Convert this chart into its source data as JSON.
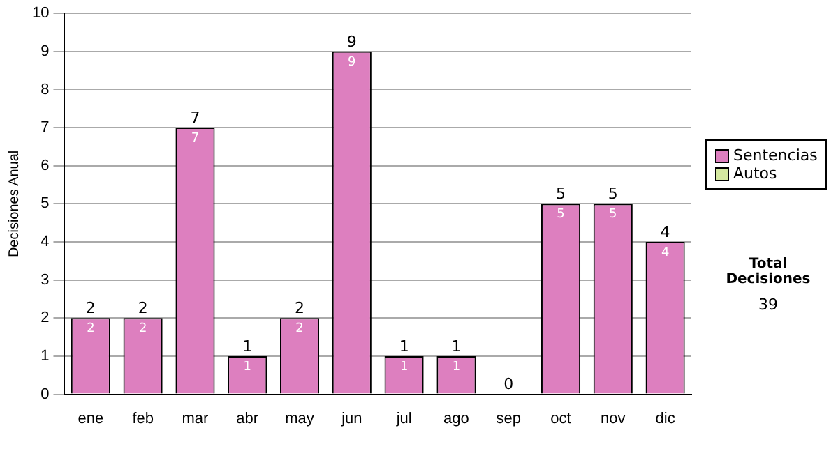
{
  "chart_data": {
    "type": "bar",
    "stacked": true,
    "ylabel": "Decisiones Anual",
    "categories": [
      "ene",
      "feb",
      "mar",
      "abr",
      "may",
      "jun",
      "jul",
      "ago",
      "sep",
      "oct",
      "nov",
      "dic"
    ],
    "series": [
      {
        "name": "Sentencias",
        "color": "#dd7fbf",
        "values": [
          2,
          2,
          7,
          1,
          2,
          9,
          1,
          1,
          0,
          5,
          5,
          4
        ],
        "value_labels": [
          "2",
          "2",
          "7",
          "1",
          "2",
          "9",
          "1",
          "1",
          null,
          "5",
          "5",
          "4"
        ]
      },
      {
        "name": "Autos",
        "color": "#d4e8a0",
        "values": [
          0,
          0,
          0,
          0,
          0,
          0,
          0,
          0,
          0,
          0,
          0,
          0
        ]
      }
    ],
    "totals": [
      "2",
      "2",
      "7",
      "1",
      "2",
      "9",
      "1",
      "1",
      "0",
      "5",
      "5",
      "4"
    ],
    "ylim": [
      0,
      10
    ],
    "yticks": [
      0,
      1,
      2,
      3,
      4,
      5,
      6,
      7,
      8,
      9,
      10
    ],
    "grid": "y",
    "legend": "right",
    "annotations": [
      "Total Decisiones",
      "39"
    ]
  }
}
